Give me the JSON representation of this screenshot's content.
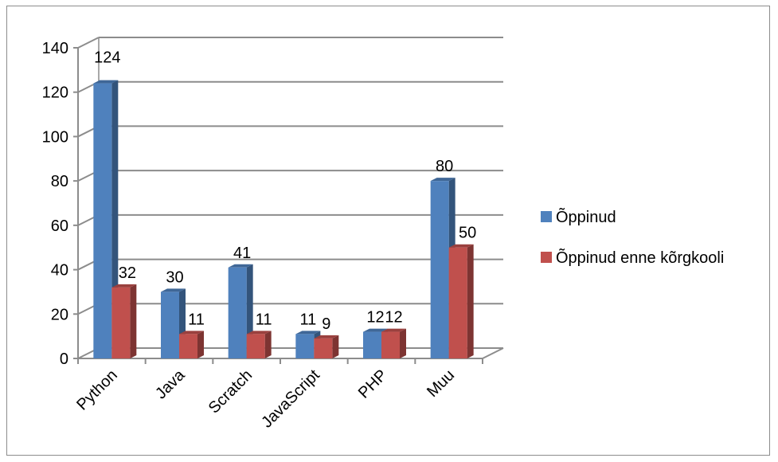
{
  "chart_data": {
    "type": "bar",
    "variant": "3d-clustered-column",
    "title": "",
    "xlabel": "",
    "ylabel": "",
    "categories": [
      "Python",
      "Java",
      "Scratch",
      "JavaScript",
      "PHP",
      "Muu"
    ],
    "series": [
      {
        "name": "Õppinud",
        "values": [
          124,
          30,
          41,
          11,
          12,
          80
        ],
        "color": "#4f81bd"
      },
      {
        "name": "Õppinud enne kõrgkooli",
        "values": [
          32,
          11,
          11,
          9,
          12,
          50
        ],
        "color": "#c0504d"
      }
    ],
    "ylim": [
      0,
      140
    ],
    "yticks": [
      0,
      20,
      40,
      60,
      80,
      100,
      120,
      140
    ],
    "grid": true,
    "legend": "right"
  }
}
